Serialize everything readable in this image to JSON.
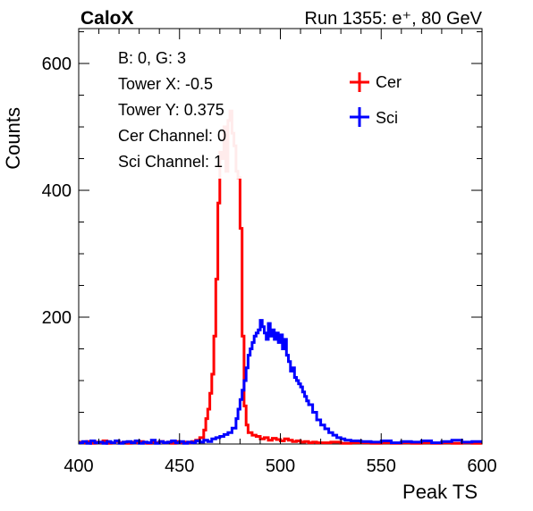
{
  "header": {
    "brand": "CaloX",
    "run_info": "Run 1355: e⁺, 80 GeV"
  },
  "info_box": {
    "lines": [
      "B: 0, G: 3",
      "Tower X: -0.5",
      "Tower Y: 0.375",
      "Cer Channel: 0",
      "Sci Channel: 1"
    ]
  },
  "chart_data": {
    "type": "line",
    "title": "",
    "xlabel": "Peak TS",
    "ylabel": "Counts",
    "xlim": [
      400,
      600
    ],
    "ylim": [
      0,
      655
    ],
    "x_ticks": [
      400,
      450,
      500,
      550,
      600
    ],
    "y_ticks": [
      200,
      400,
      600
    ],
    "grid": false,
    "legend_position": "top-right",
    "bin_width": 1,
    "series": [
      {
        "name": "Cer",
        "color": "#ff0000",
        "x": [
          400,
          402,
          404,
          406,
          408,
          410,
          412,
          414,
          416,
          418,
          420,
          422,
          424,
          426,
          428,
          430,
          432,
          434,
          436,
          438,
          440,
          442,
          444,
          446,
          448,
          450,
          452,
          454,
          456,
          458,
          460,
          462,
          463,
          464,
          465,
          466,
          467,
          468,
          469,
          470,
          471,
          472,
          473,
          474,
          475,
          476,
          477,
          478,
          479,
          480,
          481,
          482,
          483,
          484,
          486,
          488,
          490,
          492,
          494,
          496,
          498,
          500,
          502,
          504,
          506,
          508,
          510,
          512,
          514,
          516,
          518,
          520,
          525,
          530,
          535,
          540,
          545,
          550,
          555,
          560,
          565,
          570,
          575,
          580,
          585,
          590,
          595
        ],
        "values": [
          3,
          2,
          4,
          1,
          3,
          2,
          5,
          1,
          2,
          4,
          2,
          3,
          1,
          3,
          2,
          4,
          2,
          1,
          3,
          2,
          4,
          2,
          3,
          1,
          4,
          2,
          3,
          2,
          4,
          6,
          10,
          22,
          40,
          55,
          80,
          110,
          170,
          260,
          380,
          460,
          450,
          500,
          430,
          510,
          525,
          490,
          470,
          430,
          420,
          340,
          170,
          60,
          30,
          18,
          14,
          12,
          8,
          10,
          6,
          9,
          7,
          5,
          8,
          6,
          4,
          5,
          3,
          4,
          2,
          3,
          2,
          2,
          3,
          1,
          2,
          2,
          1,
          2,
          1,
          2,
          1,
          2,
          1,
          2,
          1,
          2,
          1
        ]
      },
      {
        "name": "Sci",
        "color": "#0000ff",
        "x": [
          400,
          402,
          404,
          406,
          408,
          410,
          412,
          414,
          416,
          418,
          420,
          422,
          424,
          426,
          428,
          430,
          432,
          434,
          436,
          438,
          440,
          442,
          444,
          446,
          448,
          450,
          452,
          454,
          456,
          458,
          460,
          462,
          464,
          466,
          468,
          470,
          472,
          474,
          476,
          478,
          479,
          480,
          481,
          482,
          483,
          484,
          485,
          486,
          487,
          488,
          489,
          490,
          491,
          492,
          493,
          494,
          495,
          496,
          497,
          498,
          499,
          500,
          501,
          502,
          503,
          504,
          505,
          506,
          507,
          508,
          509,
          510,
          511,
          512,
          513,
          514,
          516,
          518,
          520,
          522,
          524,
          526,
          528,
          530,
          532,
          535,
          540,
          545,
          550,
          555,
          560,
          565,
          570,
          575,
          580,
          585,
          590,
          595
        ],
        "values": [
          2,
          4,
          1,
          5,
          2,
          3,
          1,
          4,
          2,
          5,
          1,
          3,
          4,
          2,
          5,
          1,
          3,
          2,
          6,
          1,
          4,
          2,
          3,
          5,
          2,
          4,
          1,
          3,
          2,
          5,
          3,
          6,
          4,
          8,
          10,
          12,
          15,
          18,
          25,
          40,
          55,
          70,
          85,
          100,
          120,
          140,
          150,
          160,
          170,
          175,
          180,
          195,
          185,
          175,
          165,
          190,
          170,
          180,
          165,
          175,
          160,
          172,
          150,
          165,
          140,
          130,
          115,
          120,
          105,
          100,
          95,
          90,
          82,
          75,
          68,
          62,
          50,
          38,
          30,
          24,
          18,
          14,
          10,
          8,
          6,
          5,
          4,
          3,
          5,
          2,
          4,
          3,
          5,
          2,
          4,
          6,
          3,
          4
        ]
      }
    ]
  }
}
